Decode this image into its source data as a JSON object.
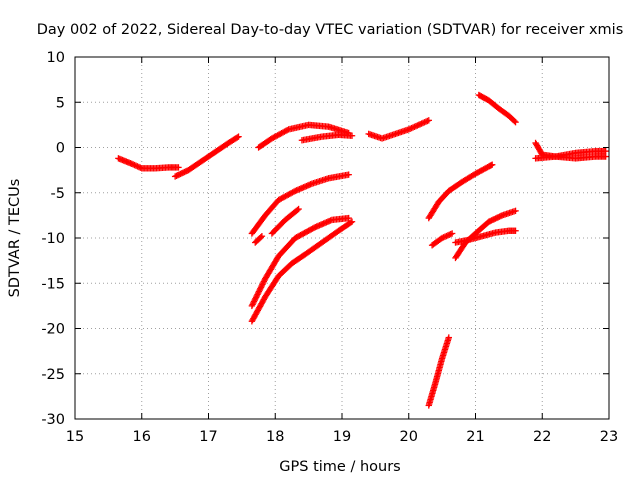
{
  "chart_data": {
    "type": "scatter",
    "title": "Day 002 of 2022, Sidereal Day-to-day VTEC variation (SDTVAR) for receiver xmis",
    "xlabel": "GPS time / hours",
    "ylabel": "SDTVAR / TECUs",
    "xlim": [
      15,
      23
    ],
    "ylim": [
      -30,
      10
    ],
    "xticks": [
      15,
      16,
      17,
      18,
      19,
      20,
      21,
      22,
      23
    ],
    "yticks": [
      10,
      5,
      0,
      -5,
      -10,
      -15,
      -20,
      -25,
      -30
    ],
    "grid": true,
    "marker": "plus",
    "color": "#ff0000",
    "series": [
      {
        "x": [
          15.65,
          15.85,
          16.0,
          16.2,
          16.4,
          16.55
        ],
        "y": [
          -1.2,
          -1.8,
          -2.3,
          -2.3,
          -2.2,
          -2.2
        ]
      },
      {
        "x": [
          16.5,
          16.7,
          16.9,
          17.1,
          17.3,
          17.45
        ],
        "y": [
          -3.2,
          -2.5,
          -1.5,
          -0.5,
          0.5,
          1.2
        ]
      },
      {
        "x": [
          17.75,
          17.95,
          18.2,
          18.5,
          18.8,
          19.1
        ],
        "y": [
          0.0,
          1.0,
          2.0,
          2.5,
          2.3,
          1.6
        ]
      },
      {
        "x": [
          18.4,
          18.7,
          18.95,
          19.15
        ],
        "y": [
          0.8,
          1.2,
          1.4,
          1.3
        ]
      },
      {
        "x": [
          19.4,
          19.6,
          19.8,
          20.0,
          20.15,
          20.3
        ],
        "y": [
          1.5,
          1.0,
          1.5,
          2.0,
          2.5,
          3.0
        ]
      },
      {
        "x": [
          21.05,
          21.2,
          21.35,
          21.5,
          21.6
        ],
        "y": [
          5.8,
          5.2,
          4.3,
          3.5,
          2.8
        ]
      },
      {
        "x": [
          21.9,
          22.0,
          22.2,
          22.5,
          22.8,
          22.95
        ],
        "y": [
          0.5,
          -0.8,
          -1.0,
          -0.6,
          -0.4,
          -0.4
        ]
      },
      {
        "x": [
          21.9,
          22.2,
          22.5,
          22.8,
          22.95
        ],
        "y": [
          -1.2,
          -1.0,
          -1.2,
          -1.0,
          -1.0
        ]
      },
      {
        "x": [
          17.65,
          17.85,
          18.05,
          18.3,
          18.55,
          18.8,
          19.1
        ],
        "y": [
          -9.5,
          -7.5,
          -5.8,
          -4.8,
          -4.0,
          -3.4,
          -3.0
        ]
      },
      {
        "x": [
          17.7,
          17.8
        ],
        "y": [
          -10.5,
          -9.8
        ]
      },
      {
        "x": [
          17.95,
          18.15,
          18.35
        ],
        "y": [
          -9.5,
          -8.0,
          -6.8
        ]
      },
      {
        "x": [
          17.65,
          17.85,
          18.05,
          18.3,
          18.6,
          18.85,
          19.1
        ],
        "y": [
          -17.5,
          -14.5,
          -12.0,
          -10.0,
          -8.8,
          -8.0,
          -7.8
        ]
      },
      {
        "x": [
          17.65,
          17.85,
          18.05,
          18.25,
          18.45,
          18.7,
          18.95,
          19.15
        ],
        "y": [
          -19.2,
          -16.5,
          -14.2,
          -12.8,
          -11.8,
          -10.5,
          -9.2,
          -8.2
        ]
      },
      {
        "x": [
          20.3,
          20.45,
          20.6,
          20.8,
          21.0,
          21.2,
          21.25
        ],
        "y": [
          -7.8,
          -6.0,
          -4.8,
          -3.8,
          -2.9,
          -2.1,
          -1.9
        ]
      },
      {
        "x": [
          20.35,
          20.5,
          20.65
        ],
        "y": [
          -10.8,
          -10.0,
          -9.5
        ]
      },
      {
        "x": [
          20.7,
          20.85,
          21.0,
          21.2,
          21.4,
          21.6
        ],
        "y": [
          -12.2,
          -10.5,
          -9.5,
          -8.2,
          -7.5,
          -7.0
        ]
      },
      {
        "x": [
          20.7,
          20.9,
          21.1,
          21.3,
          21.5,
          21.6
        ],
        "y": [
          -10.5,
          -10.2,
          -9.8,
          -9.4,
          -9.2,
          -9.2
        ]
      },
      {
        "x": [
          20.3,
          20.4,
          20.5,
          20.6
        ],
        "y": [
          -28.5,
          -26.0,
          -23.3,
          -21.0
        ]
      }
    ]
  }
}
